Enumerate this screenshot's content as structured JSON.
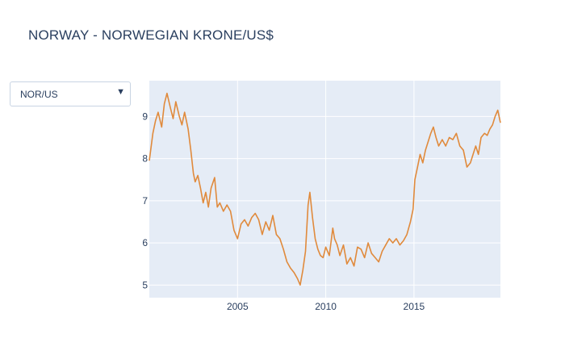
{
  "title": "NORWAY - NORWEGIAN KRONE/US$",
  "dropdown": {
    "selected": "NOR/US",
    "icon": "triangle-down-icon"
  },
  "colors": {
    "line": "#e08a3c",
    "plot_bg": "#e5ecf6",
    "grid": "#ffffff",
    "text": "#2a3f5f"
  },
  "chart_data": {
    "type": "line",
    "title": "NORWAY - NORWEGIAN KRONE/US$",
    "xlabel": "",
    "ylabel": "",
    "xlim": [
      2000.0,
      2019.9
    ],
    "ylim": [
      4.7,
      9.85
    ],
    "x_ticks": [
      2005,
      2010,
      2015
    ],
    "x_tick_labels": [
      "2005",
      "2010",
      "2015"
    ],
    "y_ticks": [
      5,
      6,
      7,
      8,
      9
    ],
    "y_tick_labels": [
      "5",
      "6",
      "7",
      "8",
      "9"
    ],
    "grid": true,
    "series": [
      {
        "name": "NOR/US",
        "x": [
          2000.0,
          2000.2,
          2000.35,
          2000.5,
          2000.7,
          2000.85,
          2001.0,
          2001.2,
          2001.35,
          2001.5,
          2001.7,
          2001.85,
          2002.0,
          2002.2,
          2002.35,
          2002.5,
          2002.6,
          2002.75,
          2002.9,
          2003.05,
          2003.2,
          2003.35,
          2003.5,
          2003.7,
          2003.85,
          2004.0,
          2004.2,
          2004.4,
          2004.6,
          2004.8,
          2005.0,
          2005.2,
          2005.4,
          2005.6,
          2005.8,
          2006.0,
          2006.2,
          2006.4,
          2006.6,
          2006.8,
          2007.0,
          2007.2,
          2007.4,
          2007.6,
          2007.8,
          2008.0,
          2008.2,
          2008.4,
          2008.55,
          2008.7,
          2008.85,
          2009.0,
          2009.1,
          2009.25,
          2009.4,
          2009.55,
          2009.7,
          2009.85,
          2010.0,
          2010.2,
          2010.4,
          2010.5,
          2010.65,
          2010.8,
          2011.0,
          2011.2,
          2011.4,
          2011.6,
          2011.8,
          2012.0,
          2012.2,
          2012.4,
          2012.6,
          2012.8,
          2013.0,
          2013.2,
          2013.4,
          2013.6,
          2013.8,
          2014.0,
          2014.2,
          2014.4,
          2014.6,
          2014.8,
          2014.95,
          2015.05,
          2015.2,
          2015.35,
          2015.5,
          2015.65,
          2015.8,
          2015.95,
          2016.1,
          2016.25,
          2016.4,
          2016.6,
          2016.8,
          2017.0,
          2017.2,
          2017.4,
          2017.6,
          2017.8,
          2018.0,
          2018.2,
          2018.35,
          2018.5,
          2018.65,
          2018.8,
          2019.0,
          2019.15,
          2019.3,
          2019.45,
          2019.6,
          2019.75,
          2019.9
        ],
        "values": [
          7.95,
          8.6,
          8.9,
          9.1,
          8.75,
          9.3,
          9.55,
          9.2,
          8.95,
          9.35,
          9.0,
          8.8,
          9.1,
          8.7,
          8.2,
          7.65,
          7.45,
          7.6,
          7.3,
          6.95,
          7.2,
          6.85,
          7.3,
          7.55,
          6.85,
          6.95,
          6.75,
          6.9,
          6.75,
          6.3,
          6.1,
          6.45,
          6.55,
          6.4,
          6.6,
          6.7,
          6.55,
          6.2,
          6.5,
          6.3,
          6.65,
          6.2,
          6.1,
          5.85,
          5.55,
          5.4,
          5.3,
          5.15,
          5.0,
          5.35,
          5.8,
          6.9,
          7.2,
          6.6,
          6.1,
          5.85,
          5.7,
          5.65,
          5.9,
          5.7,
          6.35,
          6.1,
          5.95,
          5.7,
          5.95,
          5.5,
          5.65,
          5.45,
          5.9,
          5.85,
          5.65,
          6.0,
          5.75,
          5.65,
          5.55,
          5.8,
          5.95,
          6.1,
          6.0,
          6.1,
          5.95,
          6.05,
          6.2,
          6.5,
          6.8,
          7.5,
          7.8,
          8.1,
          7.9,
          8.2,
          8.4,
          8.6,
          8.75,
          8.5,
          8.3,
          8.45,
          8.3,
          8.5,
          8.45,
          8.6,
          8.3,
          8.2,
          7.8,
          7.9,
          8.1,
          8.3,
          8.1,
          8.5,
          8.6,
          8.55,
          8.7,
          8.8,
          9.0,
          9.15,
          8.85
        ]
      }
    ]
  }
}
